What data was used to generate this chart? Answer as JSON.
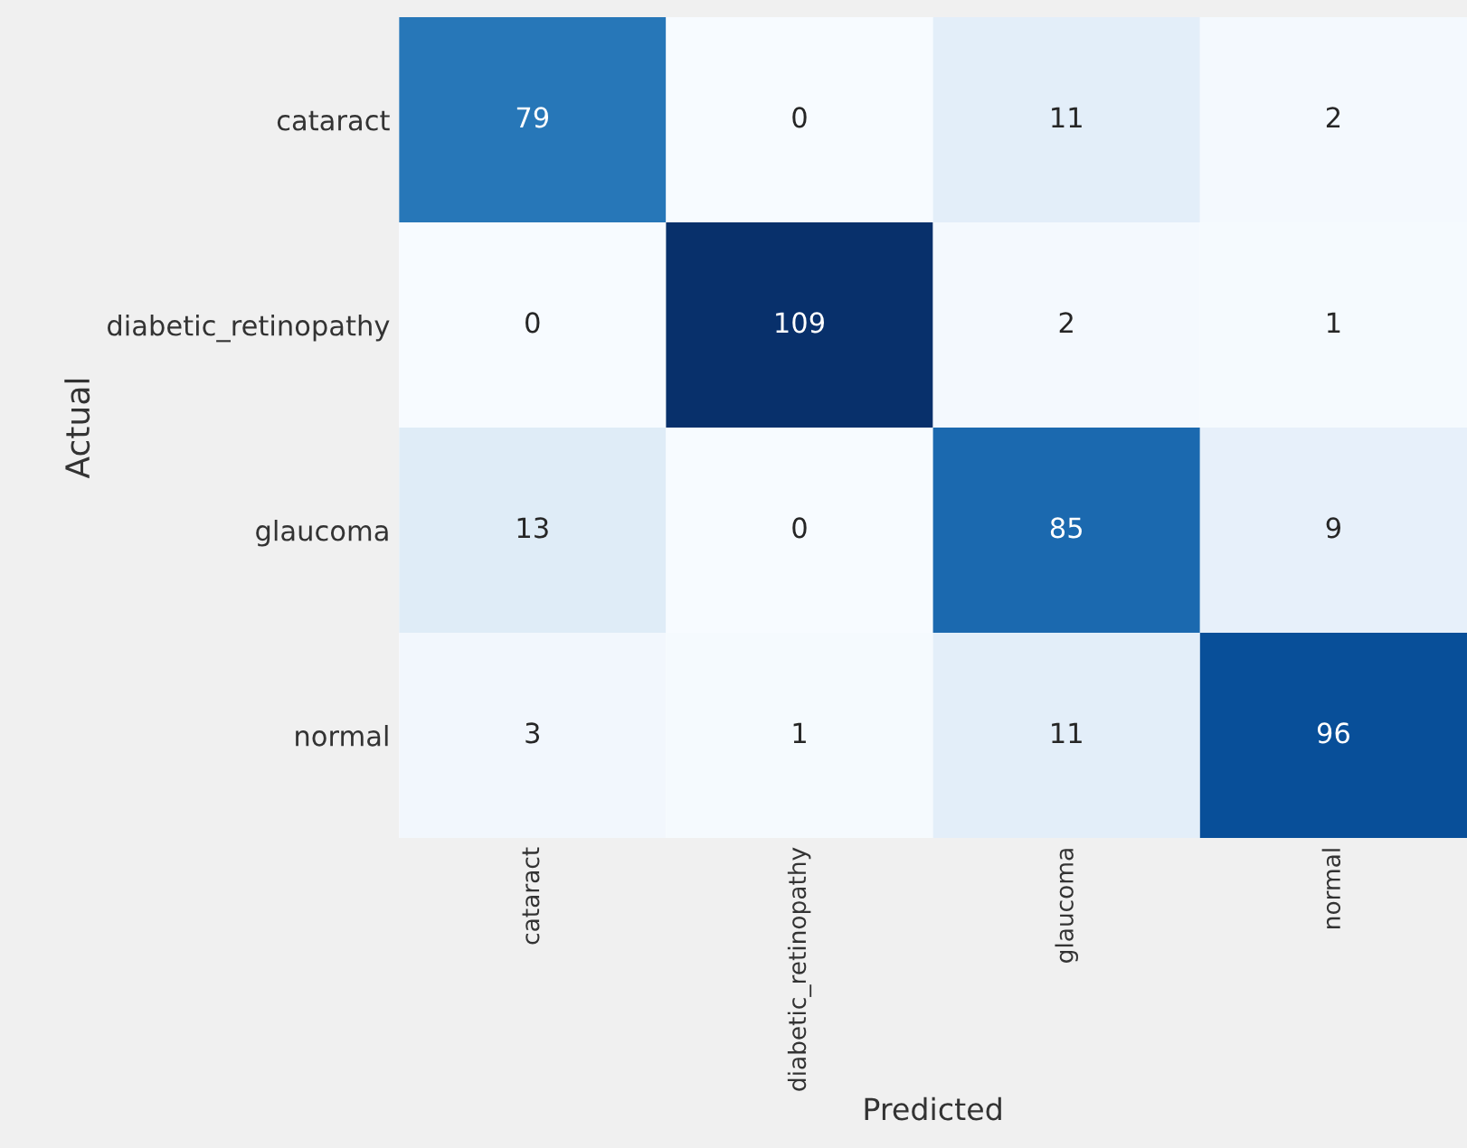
{
  "chart_data": {
    "type": "heatmap",
    "xlabel": "Predicted",
    "ylabel": "Actual",
    "categories": [
      "cataract",
      "diabetic_retinopathy",
      "glaucoma",
      "normal"
    ],
    "y_categories": [
      "cataract",
      "diabetic_retinopathy",
      "glaucoma",
      "normal"
    ],
    "cells": [
      [
        79,
        0,
        11,
        2
      ],
      [
        0,
        109,
        2,
        1
      ],
      [
        13,
        0,
        85,
        9
      ],
      [
        3,
        1,
        11,
        96
      ]
    ],
    "data_labels": true
  }
}
